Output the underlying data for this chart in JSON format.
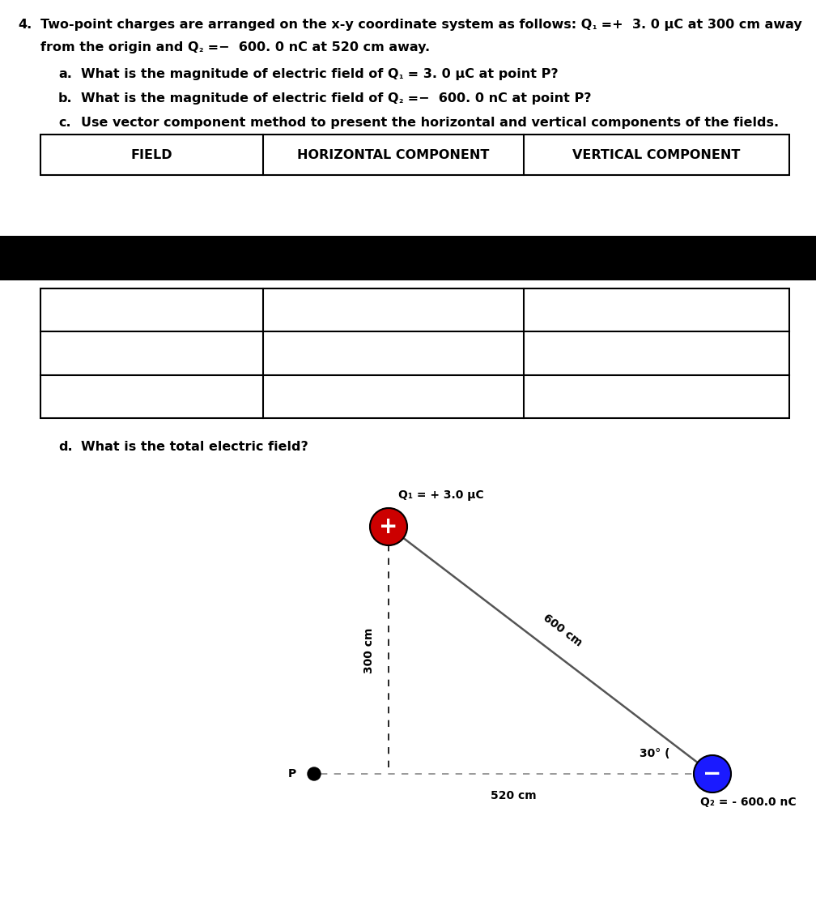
{
  "bg_color": "#ffffff",
  "black_bar_color": "#000000",
  "font_size_main": 11.5,
  "font_size_table": 11.5,
  "font_size_diagram": 10,
  "q1_color": "#cc0000",
  "q2_color": "#1a1aff",
  "q1_label": "Q₁ = + 3.0 μC",
  "q2_label": "Q₂ = - 600.0 nC",
  "dist_vertical": "300 cm",
  "dist_diagonal": "600 cm",
  "dist_horizontal": "520 cm",
  "angle_label": "30° (",
  "p_label": "P"
}
